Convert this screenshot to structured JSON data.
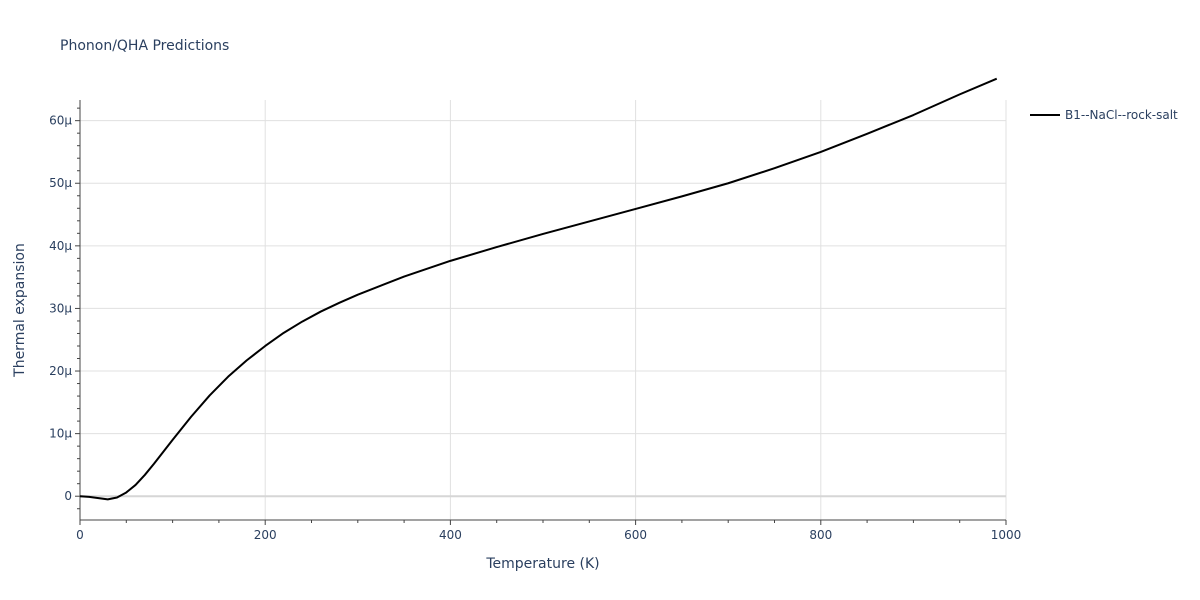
{
  "chart_data": {
    "type": "line",
    "title": "Phonon/QHA Predictions",
    "xlabel": "Temperature (K)",
    "ylabel": "Thermal expansion",
    "xlim": [
      0,
      1000
    ],
    "ylim": [
      -3.8e-06,
      6.33e-05
    ],
    "x_ticks": [
      0,
      200,
      400,
      600,
      800,
      1000
    ],
    "x_tick_labels": [
      "0",
      "200",
      "400",
      "600",
      "800",
      "1000"
    ],
    "y_ticks": [
      0,
      1e-05,
      2e-05,
      3e-05,
      4e-05,
      5e-05,
      6e-05
    ],
    "y_tick_labels": [
      "0",
      "10μ",
      "20μ",
      "30μ",
      "40μ",
      "50μ",
      "60μ"
    ],
    "grid": true,
    "legend_position": "top-right-outside",
    "series": [
      {
        "name": "B1--NaCl--rock-salt",
        "color": "#000000",
        "x": [
          0,
          10,
          20,
          30,
          40,
          50,
          60,
          70,
          80,
          90,
          100,
          120,
          140,
          160,
          180,
          200,
          220,
          240,
          260,
          280,
          300,
          350,
          400,
          450,
          500,
          550,
          600,
          650,
          700,
          750,
          800,
          850,
          900,
          950,
          990
        ],
        "y": [
          0,
          -1e-07,
          -3e-07,
          -5e-07,
          -2e-07,
          6e-07,
          1.8e-06,
          3.4e-06,
          5.2e-06,
          7.1e-06,
          9e-06,
          1.27e-05,
          1.61e-05,
          1.91e-05,
          2.17e-05,
          2.4e-05,
          2.61e-05,
          2.79e-05,
          2.95e-05,
          3.09e-05,
          3.22e-05,
          3.51e-05,
          3.76e-05,
          3.98e-05,
          4.19e-05,
          4.39e-05,
          4.59e-05,
          4.79e-05,
          5e-05,
          5.24e-05,
          5.5e-05,
          5.79e-05,
          6.09e-05,
          6.42e-05,
          6.67e-05
        ]
      }
    ]
  }
}
